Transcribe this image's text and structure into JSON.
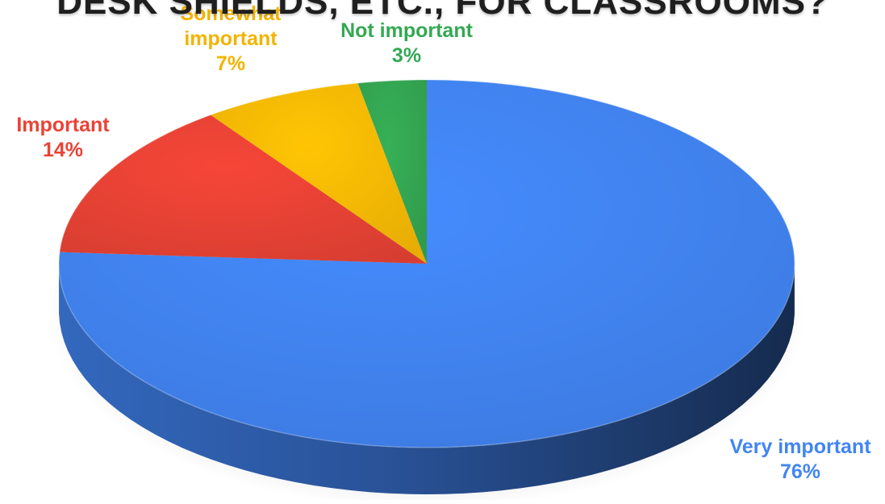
{
  "chart_data": {
    "type": "pie",
    "title": "DESK SHIELDS, ETC., FOR CLASSROOMS?",
    "style": "3d",
    "slices": [
      {
        "label": "Very important",
        "value": 76,
        "display": "76%",
        "color": "#4285f4"
      },
      {
        "label": "Important",
        "value": 14,
        "display": "14%",
        "color": "#ea4335"
      },
      {
        "label": "Somewhat important",
        "value": 7,
        "display": "7%",
        "color": "#fbbc04"
      },
      {
        "label": "Not important",
        "value": 3,
        "display": "3%",
        "color": "#34a853"
      }
    ],
    "label_colors": {
      "Very important": "#4285f4",
      "Important": "#ea4335",
      "Somewhat important": "#f2b400",
      "Not important": "#34a853"
    }
  }
}
